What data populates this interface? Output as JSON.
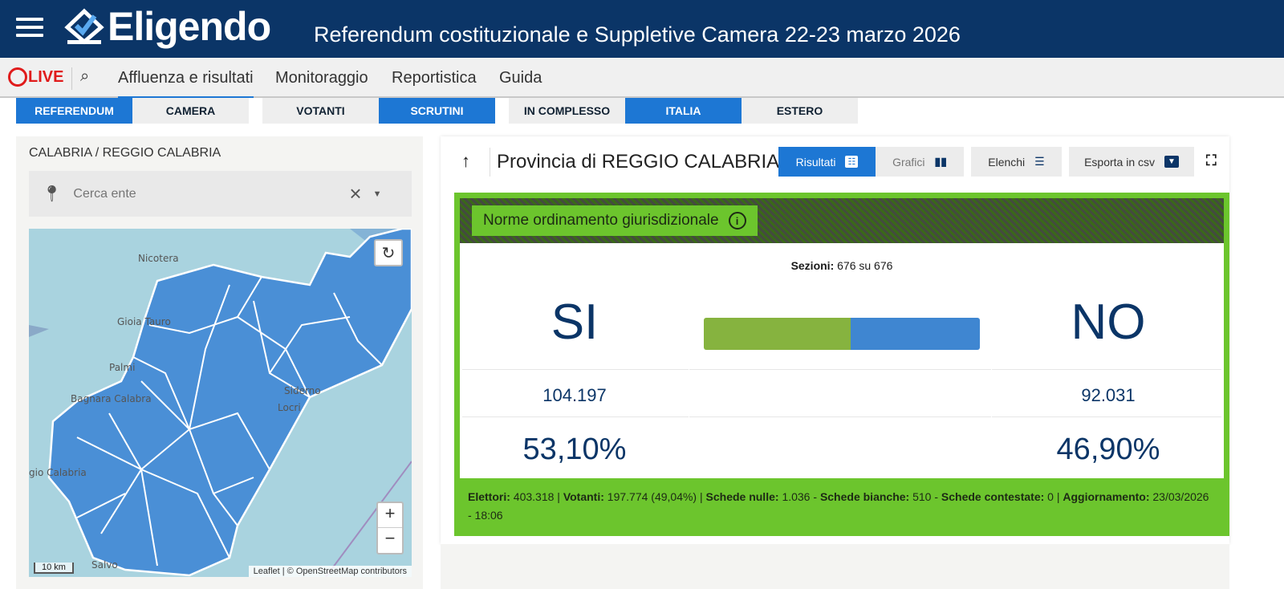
{
  "header": {
    "app_name": "Eligendo",
    "title": "Referendum costituzionale e Suppletive Camera 22-23 marzo 2026"
  },
  "nav": {
    "live": "LIVE",
    "items": [
      "Affluenza e risultati",
      "Monitoraggio",
      "Reportistica",
      "Guida"
    ],
    "active": 0
  },
  "tabs": [
    {
      "label": "REFERENDUM",
      "active": true
    },
    {
      "label": "CAMERA",
      "active": false
    },
    {
      "label": "VOTANTI",
      "active": false
    },
    {
      "label": "SCRUTINI",
      "active": true
    },
    {
      "label": "IN COMPLESSO",
      "active": false
    },
    {
      "label": "ITALIA",
      "active": true
    },
    {
      "label": "ESTERO",
      "active": false
    }
  ],
  "left": {
    "breadcrumb": "CALABRIA  /  REGGIO CALABRIA",
    "search_placeholder": "Cerca ente",
    "map": {
      "labels": [
        "Nicotera",
        "Gioia Tauro",
        "Palmi",
        "Bagnara Calabra",
        "Siderno",
        "Locri",
        "gio Calabria",
        "Salvo"
      ],
      "attribution": "Leaflet | © OpenStreetMap contributors",
      "scale": "10 km",
      "zoom_in": "+",
      "zoom_out": "−",
      "fill": "#4a8fd6"
    }
  },
  "right": {
    "title": "Provincia di REGGIO CALABRIA",
    "buttons": {
      "results": "Risultati",
      "charts": "Grafici",
      "lists": "Elenchi",
      "export": "Esporta in csv"
    },
    "question": "Norme ordinamento giurisdizionale",
    "sections_label": "Sezioni:",
    "sections_value": "676 su 676",
    "yes": {
      "label": "SI",
      "votes": "104.197",
      "pct": "53,10%",
      "share": 53.1,
      "color": "#86b33f"
    },
    "no": {
      "label": "NO",
      "votes": "92.031",
      "pct": "46,90%",
      "share": 46.9,
      "color": "#3f86d1"
    },
    "footer": {
      "elettori_label": "Elettori:",
      "elettori": "403.318",
      "votanti_label": "Votanti:",
      "votanti": "197.774 (49,04%)",
      "nulle_label": "Schede nulle:",
      "nulle": "1.036",
      "bianche_label": "Schede bianche:",
      "bianche": "510",
      "contestate_label": "Schede contestate:",
      "contestate": "0",
      "agg_label": "Aggiornamento:",
      "agg": "23/03/2026 - 18:06"
    }
  }
}
